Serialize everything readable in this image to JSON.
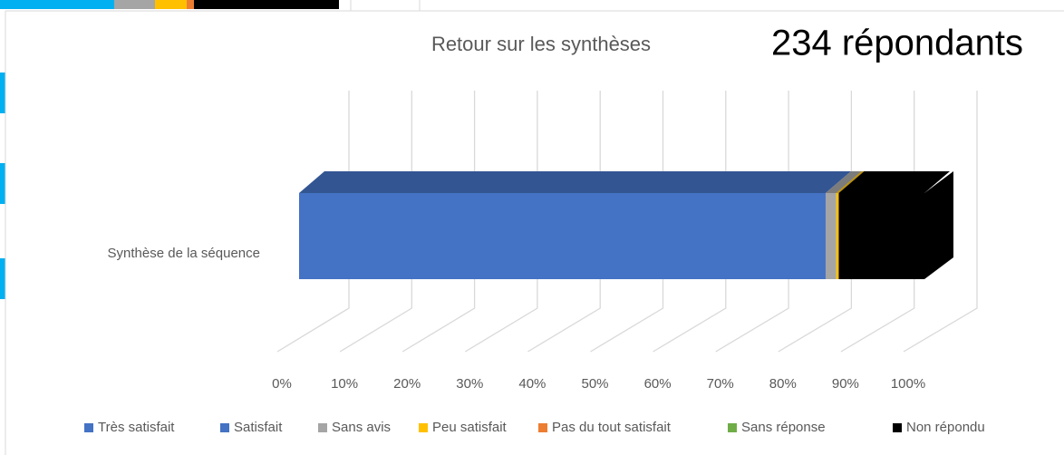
{
  "chart_data": {
    "type": "bar3d_stacked_horizontal",
    "title": "Retour sur les synthèses",
    "annotation": "234 répondants",
    "categories": [
      "Synthèse de la séquence"
    ],
    "series": [
      {
        "name": "Très satisfait",
        "color": "#4472c4",
        "values": [
          84.2
        ]
      },
      {
        "name": "Satisfait",
        "color": "#4472c4",
        "values": [
          0
        ]
      },
      {
        "name": "Sans avis",
        "color": "#a5a5a5",
        "values": [
          1.7
        ]
      },
      {
        "name": "Peu satisfait",
        "color": "#ffc000",
        "values": [
          0.4
        ]
      },
      {
        "name": "Pas du tout satisfait",
        "color": "#ed7d31",
        "values": [
          0
        ]
      },
      {
        "name": "Sans réponse",
        "color": "#70ad47",
        "values": [
          0
        ]
      },
      {
        "name": "Non répondu",
        "color": "#000000",
        "values": [
          13.7
        ]
      }
    ],
    "xlim": [
      0,
      100
    ],
    "xticks": [
      {
        "value": 0,
        "label": "0%"
      },
      {
        "value": 10,
        "label": "10%"
      },
      {
        "value": 20,
        "label": "20%"
      },
      {
        "value": 30,
        "label": "30%"
      },
      {
        "value": 40,
        "label": "40%"
      },
      {
        "value": 50,
        "label": "50%"
      },
      {
        "value": 60,
        "label": "60%"
      },
      {
        "value": 70,
        "label": "70%"
      },
      {
        "value": 80,
        "label": "80%"
      },
      {
        "value": 90,
        "label": "90%"
      },
      {
        "value": 100,
        "label": "100%"
      }
    ],
    "grid": true,
    "legend": "bottom"
  }
}
